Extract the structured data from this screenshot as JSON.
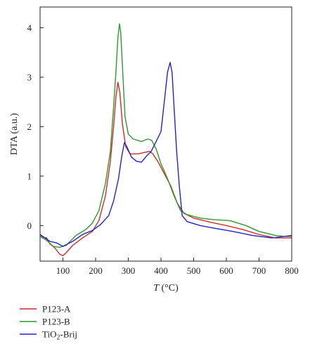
{
  "chart_data": {
    "type": "line",
    "title": "",
    "xlabel": {
      "italic": "T",
      "unit": " (°C)"
    },
    "ylabel": "DTA (a.u.)",
    "xlim": [
      30,
      800
    ],
    "ylim": [
      -0.72,
      4.42
    ],
    "xticks": [
      100,
      200,
      300,
      400,
      500,
      600,
      700,
      800
    ],
    "yticks": [
      0,
      1,
      2,
      3,
      4
    ],
    "grid": false,
    "legend_placement": "below-left",
    "series": [
      {
        "name": "P123-A",
        "color": "#d42a2a",
        "points": [
          [
            30,
            -0.22
          ],
          [
            50,
            -0.25
          ],
          [
            60,
            -0.37
          ],
          [
            75,
            -0.45
          ],
          [
            90,
            -0.58
          ],
          [
            100,
            -0.61
          ],
          [
            110,
            -0.55
          ],
          [
            130,
            -0.4
          ],
          [
            160,
            -0.25
          ],
          [
            190,
            -0.12
          ],
          [
            210,
            0.1
          ],
          [
            230,
            0.6
          ],
          [
            245,
            1.3
          ],
          [
            255,
            2.0
          ],
          [
            262,
            2.6
          ],
          [
            268,
            2.9
          ],
          [
            274,
            2.7
          ],
          [
            282,
            2.05
          ],
          [
            292,
            1.6
          ],
          [
            305,
            1.45
          ],
          [
            330,
            1.45
          ],
          [
            350,
            1.48
          ],
          [
            365,
            1.5
          ],
          [
            375,
            1.45
          ],
          [
            390,
            1.3
          ],
          [
            410,
            1.05
          ],
          [
            430,
            0.8
          ],
          [
            450,
            0.45
          ],
          [
            470,
            0.25
          ],
          [
            500,
            0.15
          ],
          [
            550,
            0.07
          ],
          [
            600,
            0.0
          ],
          [
            650,
            -0.08
          ],
          [
            700,
            -0.18
          ],
          [
            750,
            -0.25
          ],
          [
            800,
            -0.25
          ]
        ]
      },
      {
        "name": "P123-B",
        "color": "#2c9a2c",
        "points": [
          [
            30,
            -0.22
          ],
          [
            50,
            -0.3
          ],
          [
            70,
            -0.42
          ],
          [
            90,
            -0.44
          ],
          [
            110,
            -0.4
          ],
          [
            140,
            -0.2
          ],
          [
            170,
            -0.08
          ],
          [
            190,
            0.05
          ],
          [
            210,
            0.3
          ],
          [
            230,
            0.85
          ],
          [
            245,
            1.5
          ],
          [
            255,
            2.4
          ],
          [
            262,
            3.1
          ],
          [
            268,
            3.8
          ],
          [
            273,
            4.08
          ],
          [
            277,
            3.9
          ],
          [
            283,
            3.1
          ],
          [
            290,
            2.2
          ],
          [
            300,
            1.85
          ],
          [
            315,
            1.75
          ],
          [
            340,
            1.7
          ],
          [
            360,
            1.75
          ],
          [
            372,
            1.72
          ],
          [
            385,
            1.55
          ],
          [
            400,
            1.25
          ],
          [
            420,
            0.95
          ],
          [
            440,
            0.6
          ],
          [
            460,
            0.3
          ],
          [
            480,
            0.22
          ],
          [
            520,
            0.15
          ],
          [
            560,
            0.12
          ],
          [
            610,
            0.1
          ],
          [
            660,
            0.0
          ],
          [
            700,
            -0.12
          ],
          [
            750,
            -0.2
          ],
          [
            780,
            -0.22
          ],
          [
            800,
            -0.22
          ]
        ]
      },
      {
        "name": "TiO2-Brij",
        "color": "#2323c8",
        "points": [
          [
            30,
            -0.18
          ],
          [
            60,
            -0.32
          ],
          [
            80,
            -0.35
          ],
          [
            100,
            -0.42
          ],
          [
            130,
            -0.32
          ],
          [
            160,
            -0.18
          ],
          [
            190,
            -0.1
          ],
          [
            215,
            0.02
          ],
          [
            240,
            0.2
          ],
          [
            255,
            0.5
          ],
          [
            270,
            0.95
          ],
          [
            280,
            1.4
          ],
          [
            288,
            1.68
          ],
          [
            295,
            1.6
          ],
          [
            310,
            1.38
          ],
          [
            325,
            1.3
          ],
          [
            340,
            1.28
          ],
          [
            355,
            1.4
          ],
          [
            370,
            1.5
          ],
          [
            385,
            1.7
          ],
          [
            400,
            1.9
          ],
          [
            410,
            2.5
          ],
          [
            420,
            3.1
          ],
          [
            428,
            3.3
          ],
          [
            434,
            3.1
          ],
          [
            440,
            2.4
          ],
          [
            448,
            1.5
          ],
          [
            456,
            0.8
          ],
          [
            465,
            0.2
          ],
          [
            480,
            0.08
          ],
          [
            520,
            0.0
          ],
          [
            560,
            -0.05
          ],
          [
            620,
            -0.12
          ],
          [
            680,
            -0.2
          ],
          [
            740,
            -0.25
          ],
          [
            800,
            -0.2
          ]
        ]
      }
    ]
  }
}
